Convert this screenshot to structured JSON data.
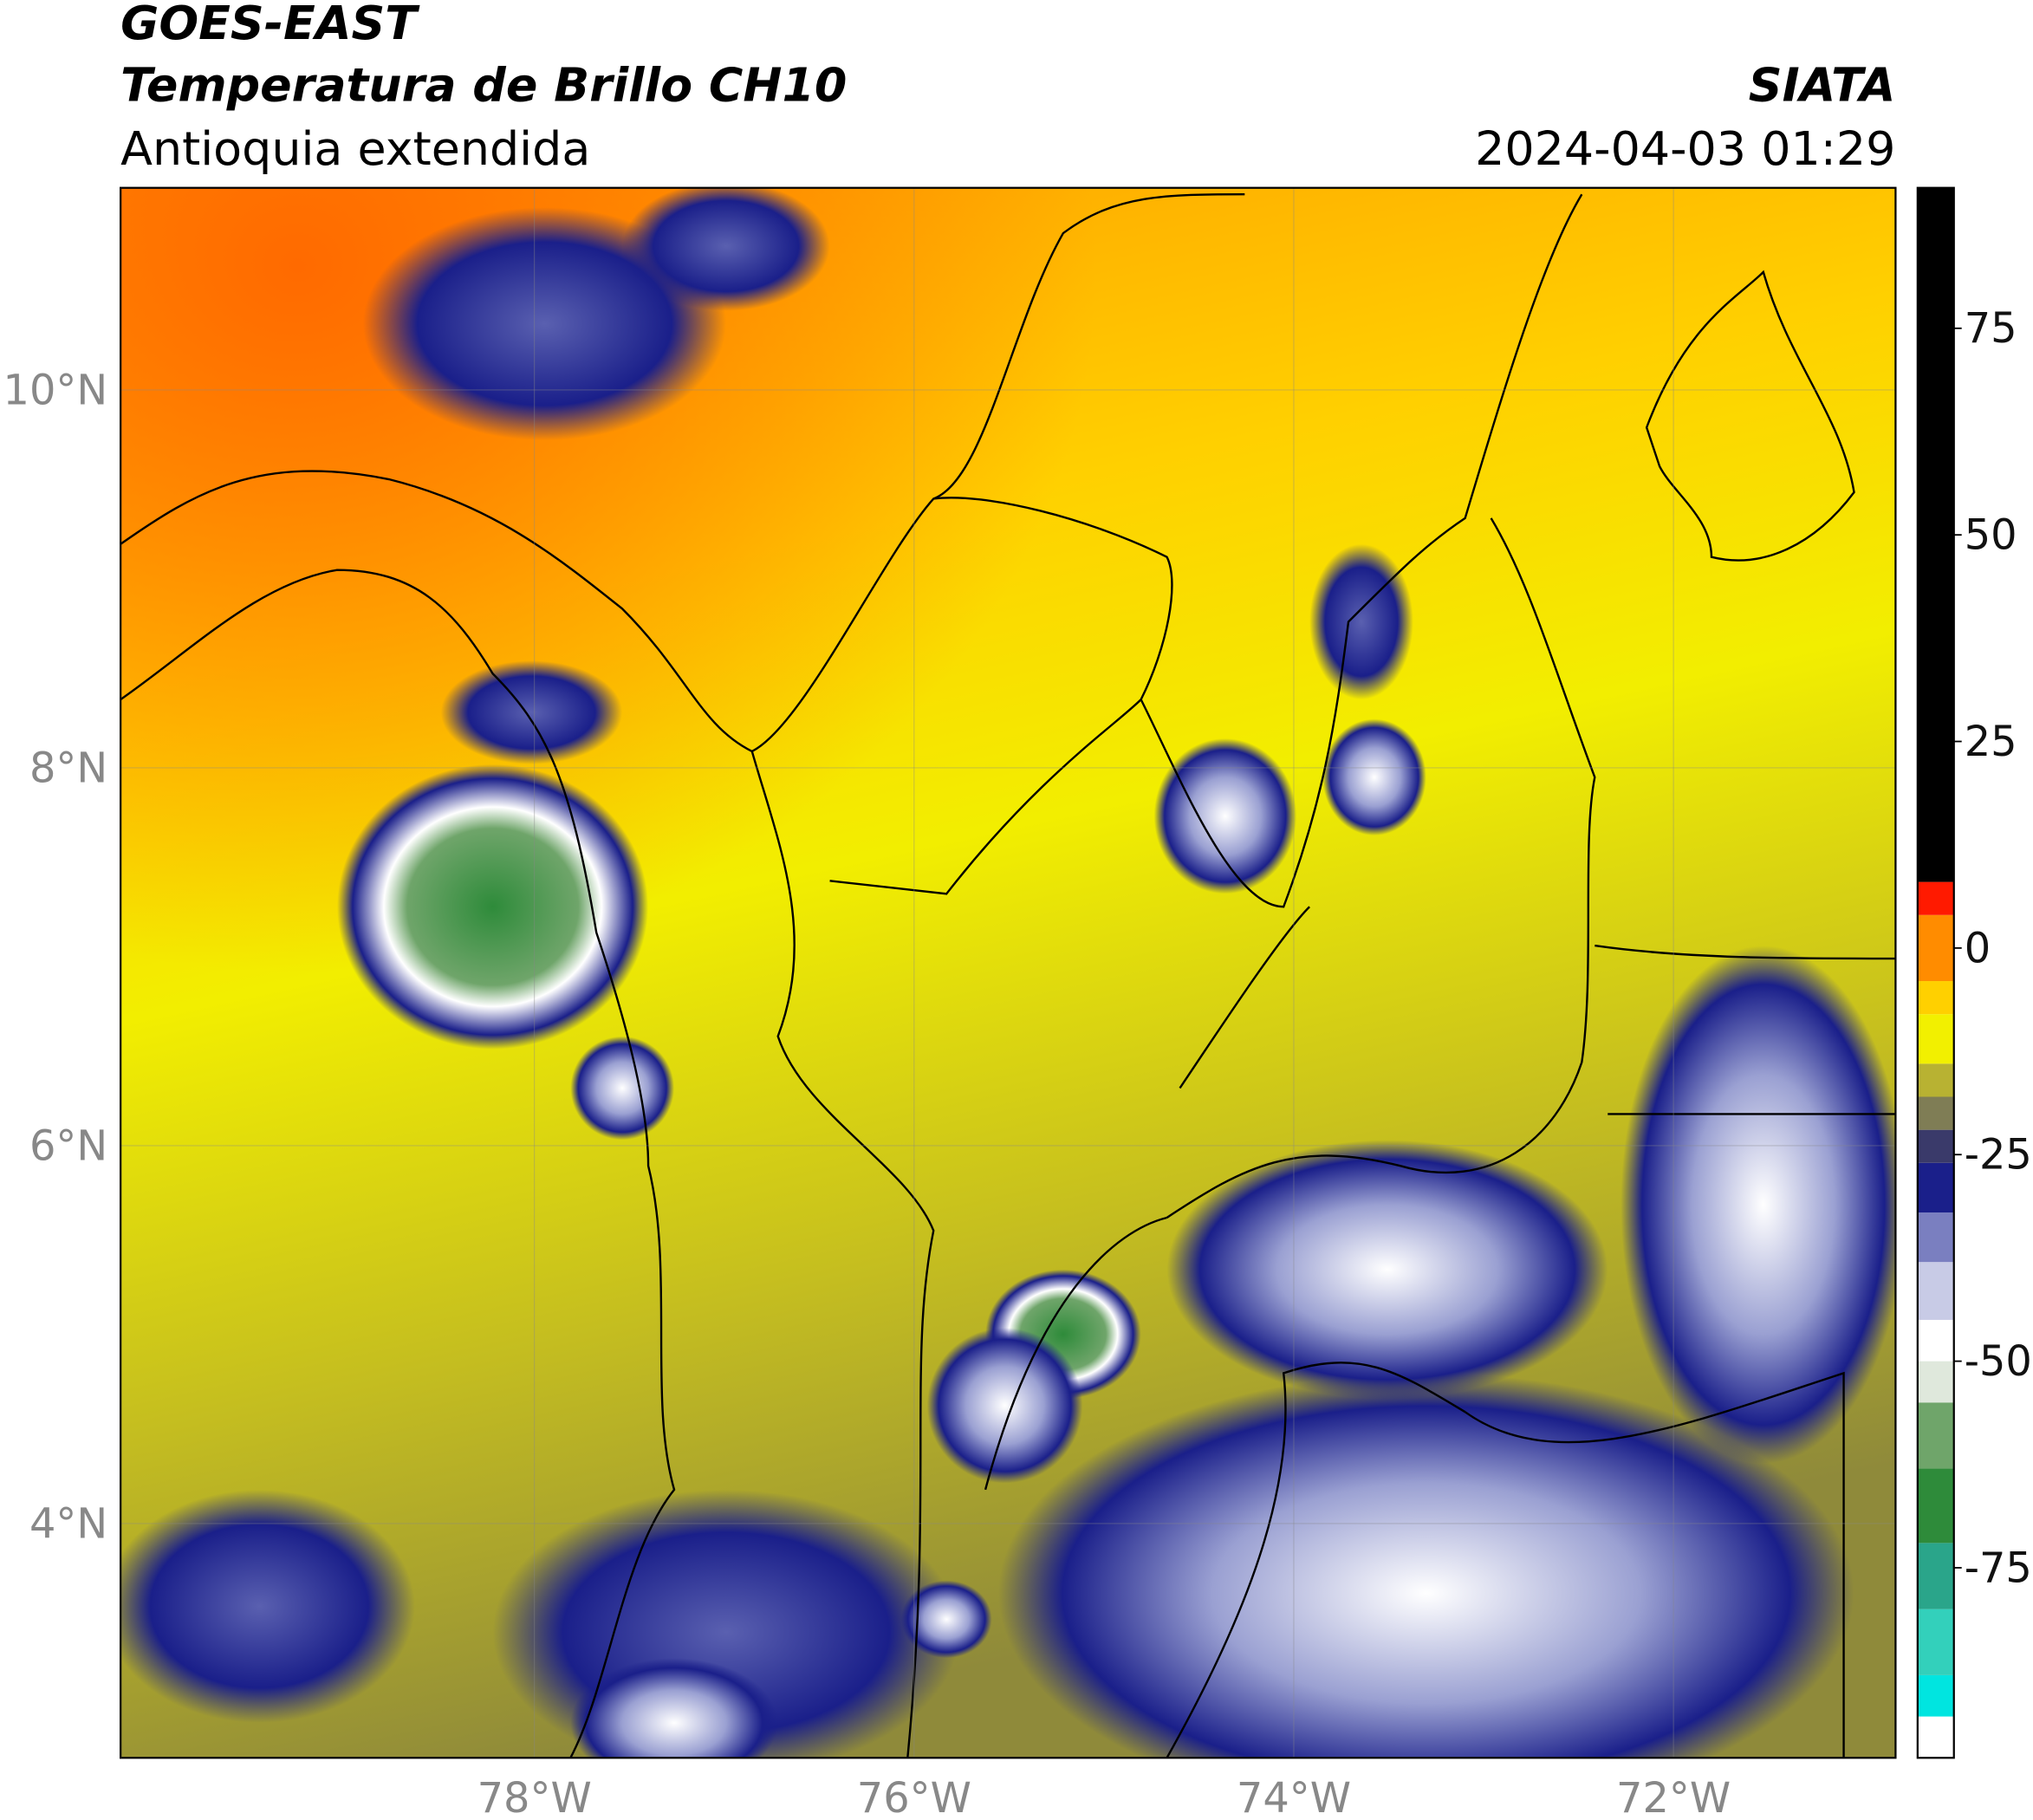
{
  "header": {
    "title": "GOES-EAST",
    "subtitle": "Temperatura de Brillo CH10",
    "region": "Antioquia extendida",
    "source": "SIATA",
    "datetime": "2024-04-03 01:29"
  },
  "map": {
    "lon_range": [
      -80.18,
      -70.83
    ],
    "lat_range": [
      2.76,
      11.07
    ],
    "lon_ticks": [
      {
        "value": -78,
        "label": "78°W"
      },
      {
        "value": -76,
        "label": "76°W"
      },
      {
        "value": -74,
        "label": "74°W"
      },
      {
        "value": -72,
        "label": "72°W"
      }
    ],
    "lat_ticks": [
      {
        "value": 10,
        "label": "10°N"
      },
      {
        "value": 8,
        "label": "8°N"
      },
      {
        "value": 6,
        "label": "6°N"
      },
      {
        "value": 4,
        "label": "4°N"
      }
    ]
  },
  "colorbar": {
    "lim": [
      -98,
      92
    ],
    "ticks": [
      75,
      50,
      25,
      0,
      -25,
      -50,
      -75
    ],
    "bands": [
      {
        "from": -98,
        "to": -93,
        "color": "#ffffff"
      },
      {
        "from": -93,
        "to": -88,
        "color": "#00e5e0"
      },
      {
        "from": -88,
        "to": -80,
        "color": "#33d0bb"
      },
      {
        "from": -80,
        "to": -72,
        "color": "#2aa58a"
      },
      {
        "from": -72,
        "to": -63,
        "color": "#2e8b3a"
      },
      {
        "from": -63,
        "to": -55,
        "color": "#6fa56a"
      },
      {
        "from": -55,
        "to": -50,
        "color": "#dfe8dc"
      },
      {
        "from": -50,
        "to": -45,
        "color": "#ffffff"
      },
      {
        "from": -45,
        "to": -38,
        "color": "#c8cbe6"
      },
      {
        "from": -38,
        "to": -32,
        "color": "#7a7fc0"
      },
      {
        "from": -32,
        "to": -26,
        "color": "#1a1f8a"
      },
      {
        "from": -26,
        "to": -22,
        "color": "#3a3a6a"
      },
      {
        "from": -22,
        "to": -18,
        "color": "#7f7d55"
      },
      {
        "from": -18,
        "to": -14,
        "color": "#b8b232"
      },
      {
        "from": -14,
        "to": -8,
        "color": "#f2f000"
      },
      {
        "from": -8,
        "to": -4,
        "color": "#ffd000"
      },
      {
        "from": -4,
        "to": 4,
        "color": "#ff8c00"
      },
      {
        "from": 4,
        "to": 8,
        "color": "#ff1a00"
      },
      {
        "from": 8,
        "to": 92,
        "color": "#000000"
      }
    ]
  }
}
